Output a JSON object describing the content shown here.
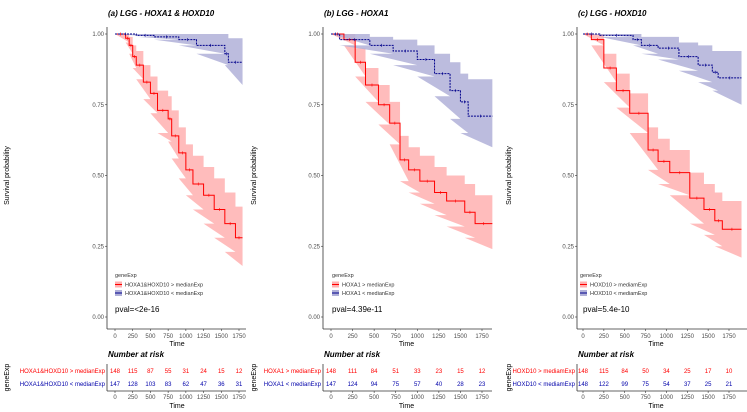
{
  "chart_data": [
    {
      "type": "line",
      "title": "(a) LGG - HOXA1 & HOXD10",
      "xlabel": "Time",
      "ylabel": "Survival probability",
      "xticks": [
        "0",
        "250",
        "500",
        "750",
        "1000",
        "1250",
        "1500",
        "1750"
      ],
      "yticks": [
        "0.00",
        "0.25",
        "0.50",
        "0.75",
        "1.00"
      ],
      "xlim": [
        0,
        1800
      ],
      "ylim": [
        0,
        1
      ],
      "legend_title": "geneExp",
      "pval": "pval=<2e-16",
      "series": [
        {
          "name": "HOXA1&HOXD10 > medianExp",
          "color": "#ff0000",
          "band_color": "#ffb0b0",
          "x": [
            0,
            150,
            200,
            250,
            300,
            400,
            500,
            600,
            750,
            800,
            900,
            1000,
            1100,
            1250,
            1400,
            1550,
            1700,
            1800
          ],
          "y": [
            1,
            0.985,
            0.96,
            0.92,
            0.89,
            0.83,
            0.79,
            0.73,
            0.7,
            0.64,
            0.58,
            0.52,
            0.47,
            0.43,
            0.38,
            0.33,
            0.28,
            0.28
          ],
          "lower": [
            1,
            0.97,
            0.93,
            0.88,
            0.84,
            0.77,
            0.72,
            0.65,
            0.62,
            0.56,
            0.49,
            0.43,
            0.38,
            0.33,
            0.28,
            0.23,
            0.18,
            0.18
          ],
          "upper": [
            1,
            1,
            0.99,
            0.96,
            0.94,
            0.89,
            0.85,
            0.8,
            0.78,
            0.73,
            0.67,
            0.61,
            0.57,
            0.53,
            0.49,
            0.44,
            0.39,
            0.39
          ]
        },
        {
          "name": "HOXA1&HOXD10 < medianExp",
          "color": "#00008b",
          "band_color": "#b0b0d8",
          "x": [
            0,
            300,
            550,
            900,
            1150,
            1550,
            1600,
            1800
          ],
          "y": [
            1,
            0.995,
            0.99,
            0.98,
            0.96,
            0.93,
            0.9,
            0.9
          ],
          "lower": [
            1,
            0.99,
            0.98,
            0.96,
            0.93,
            0.89,
            0.82,
            0.82
          ],
          "upper": [
            1,
            1,
            1,
            1,
            1,
            1,
            0.985,
            0.985
          ]
        }
      ],
      "risk_table": {
        "title": "Number at risk",
        "ylabel": "geneExp",
        "xlabel": "Time",
        "rows": [
          {
            "label": "HOXA1&HOXD10 > medianExp",
            "values": [
              "148",
              "115",
              "87",
              "55",
              "31",
              "24",
              "15",
              "12"
            ]
          },
          {
            "label": "HOXA1&HOXD10 < medianExp",
            "values": [
              "147",
              "128",
              "103",
              "83",
              "62",
              "47",
              "36",
              "31"
            ]
          }
        ]
      }
    },
    {
      "type": "line",
      "title": "(b) LGG - HOXA1",
      "xlabel": "Time",
      "ylabel": "Survival probability",
      "xticks": [
        "0",
        "250",
        "500",
        "750",
        "1000",
        "1250",
        "1500",
        "1750"
      ],
      "yticks": [
        "0.00",
        "0.25",
        "0.50",
        "0.75",
        "1.00"
      ],
      "xlim": [
        0,
        1870
      ],
      "ylim": [
        0,
        1
      ],
      "legend_title": "geneExp",
      "pval": "pval=4.39e-11",
      "series": [
        {
          "name": "HOXA1 > medianExp",
          "color": "#ff0000",
          "band_color": "#ffb0b0",
          "x": [
            0,
            150,
            280,
            400,
            550,
            680,
            800,
            900,
            1030,
            1200,
            1340,
            1550,
            1670,
            1870
          ],
          "y": [
            1,
            0.98,
            0.9,
            0.82,
            0.75,
            0.685,
            0.555,
            0.52,
            0.48,
            0.44,
            0.41,
            0.37,
            0.33,
            0.33
          ],
          "lower": [
            1,
            0.96,
            0.85,
            0.76,
            0.68,
            0.61,
            0.48,
            0.44,
            0.4,
            0.36,
            0.32,
            0.28,
            0.24,
            0.24
          ],
          "upper": [
            1,
            1,
            0.95,
            0.88,
            0.82,
            0.76,
            0.64,
            0.6,
            0.57,
            0.53,
            0.5,
            0.47,
            0.43,
            0.43
          ]
        },
        {
          "name": "HOXA1 < medianExp",
          "color": "#00008b",
          "band_color": "#b0b0d8",
          "x": [
            0,
            100,
            450,
            720,
            1000,
            1200,
            1380,
            1500,
            1590,
            1870
          ],
          "y": [
            1,
            0.98,
            0.96,
            0.94,
            0.91,
            0.86,
            0.8,
            0.76,
            0.71,
            0.71
          ],
          "lower": [
            1,
            0.96,
            0.93,
            0.89,
            0.85,
            0.78,
            0.7,
            0.65,
            0.6,
            0.6
          ],
          "upper": [
            1,
            1,
            0.99,
            0.98,
            0.96,
            0.93,
            0.9,
            0.86,
            0.84,
            0.84
          ]
        }
      ],
      "risk_table": {
        "title": "Number at risk",
        "ylabel": "geneExp",
        "xlabel": "Time",
        "rows": [
          {
            "label": "HOXA1 > medianExp",
            "values": [
              "148",
              "111",
              "84",
              "51",
              "33",
              "23",
              "15",
              "12"
            ]
          },
          {
            "label": "HOXA1 < medianExp",
            "values": [
              "147",
              "124",
              "94",
              "75",
              "57",
              "40",
              "28",
              "23"
            ]
          }
        ]
      }
    },
    {
      "type": "line",
      "title": "(c) LGG - HOXD10",
      "xlabel": "Time",
      "ylabel": "Survival probability",
      "xticks": [
        "0",
        "250",
        "500",
        "750",
        "1000",
        "1250",
        "1500",
        "1750"
      ],
      "yticks": [
        "0.00",
        "0.25",
        "0.50",
        "0.75",
        "1.00"
      ],
      "xlim": [
        0,
        1900
      ],
      "ylim": [
        0,
        1
      ],
      "legend_title": "geneExp",
      "pval": "pval=5.4e-10",
      "series": [
        {
          "name": "HOXD10 > mediamExp",
          "color": "#ff0000",
          "band_color": "#ffb0b0",
          "x": [
            0,
            100,
            250,
            400,
            560,
            780,
            900,
            1040,
            1280,
            1450,
            1580,
            1670,
            1900
          ],
          "y": [
            1,
            0.98,
            0.88,
            0.8,
            0.72,
            0.59,
            0.55,
            0.51,
            0.42,
            0.38,
            0.34,
            0.31,
            0.31
          ],
          "lower": [
            1,
            0.96,
            0.83,
            0.74,
            0.65,
            0.52,
            0.47,
            0.43,
            0.33,
            0.29,
            0.25,
            0.21,
            0.21
          ],
          "upper": [
            1,
            1,
            0.93,
            0.86,
            0.79,
            0.67,
            0.63,
            0.59,
            0.51,
            0.47,
            0.44,
            0.41,
            0.41
          ]
        },
        {
          "name": "HOXD10 < mediamExp",
          "color": "#00008b",
          "band_color": "#b0b0d8",
          "x": [
            0,
            200,
            600,
            700,
            900,
            1150,
            1380,
            1550,
            1620,
            1900
          ],
          "y": [
            1,
            0.995,
            0.98,
            0.96,
            0.95,
            0.92,
            0.89,
            0.865,
            0.845,
            0.845
          ],
          "lower": [
            1,
            0.99,
            0.96,
            0.93,
            0.91,
            0.87,
            0.83,
            0.8,
            0.75,
            0.75
          ],
          "upper": [
            1,
            1,
            1,
            0.99,
            0.99,
            0.97,
            0.96,
            0.94,
            0.94,
            0.94
          ]
        }
      ],
      "risk_table": {
        "title": "Number at risk",
        "ylabel": "geneExp",
        "xlabel": "Time",
        "rows": [
          {
            "label": "HOXD10 > mediamExp",
            "values": [
              "148",
              "115",
              "84",
              "50",
              "34",
              "25",
              "17",
              "10"
            ]
          },
          {
            "label": "HOXD10 < mediamExp",
            "values": [
              "148",
              "122",
              "99",
              "75",
              "54",
              "37",
              "25",
              "21"
            ]
          }
        ]
      }
    }
  ]
}
